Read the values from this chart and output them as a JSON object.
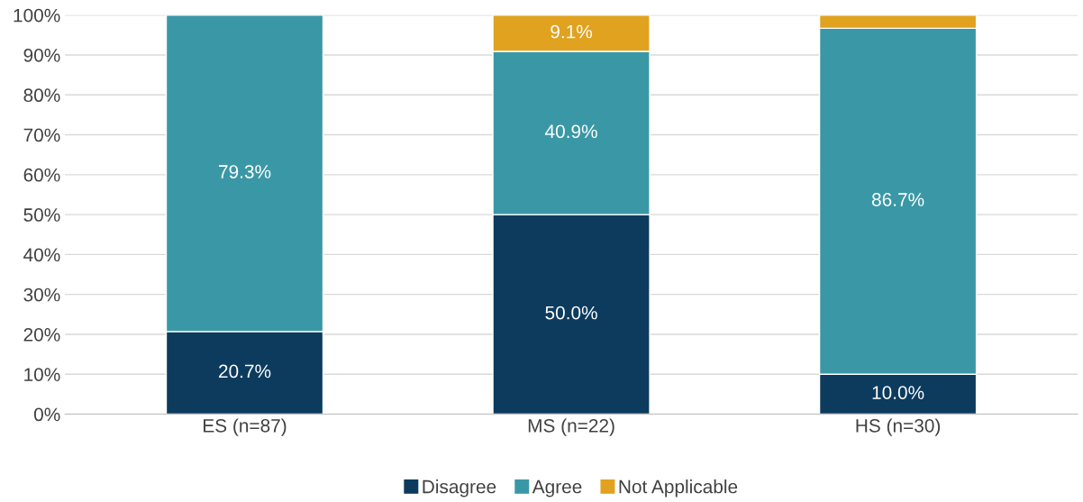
{
  "chart_data": {
    "type": "bar",
    "stacked": true,
    "categories": [
      "ES (n=87)",
      "MS (n=22)",
      "HS (n=30)"
    ],
    "series": [
      {
        "name": "Disagree",
        "color": "#0c3b5e",
        "values": [
          20.7,
          50.0,
          10.0
        ],
        "value_labels": [
          "20.7%",
          "50.0%",
          "10.0%"
        ]
      },
      {
        "name": "Agree",
        "color": "#3a98a6",
        "values": [
          79.3,
          40.9,
          86.7
        ],
        "value_labels": [
          "79.3%",
          "40.9%",
          "86.7%"
        ]
      },
      {
        "name": "Not Applicable",
        "color": "#e0a21f",
        "values": [
          null,
          9.1,
          3.3
        ],
        "value_labels": [
          null,
          "9.1%",
          null
        ]
      }
    ],
    "ylim": [
      0,
      100
    ],
    "yticks": [
      {
        "value": 0,
        "label": "0%"
      },
      {
        "value": 10,
        "label": "10%"
      },
      {
        "value": 20,
        "label": "20%"
      },
      {
        "value": 30,
        "label": "30%"
      },
      {
        "value": 40,
        "label": "40%"
      },
      {
        "value": 50,
        "label": "50%"
      },
      {
        "value": 60,
        "label": "60%"
      },
      {
        "value": 70,
        "label": "70%"
      },
      {
        "value": 80,
        "label": "80%"
      },
      {
        "value": 90,
        "label": "90%"
      },
      {
        "value": 100,
        "label": "100%"
      }
    ],
    "grid": "y",
    "legend": "bottom"
  }
}
